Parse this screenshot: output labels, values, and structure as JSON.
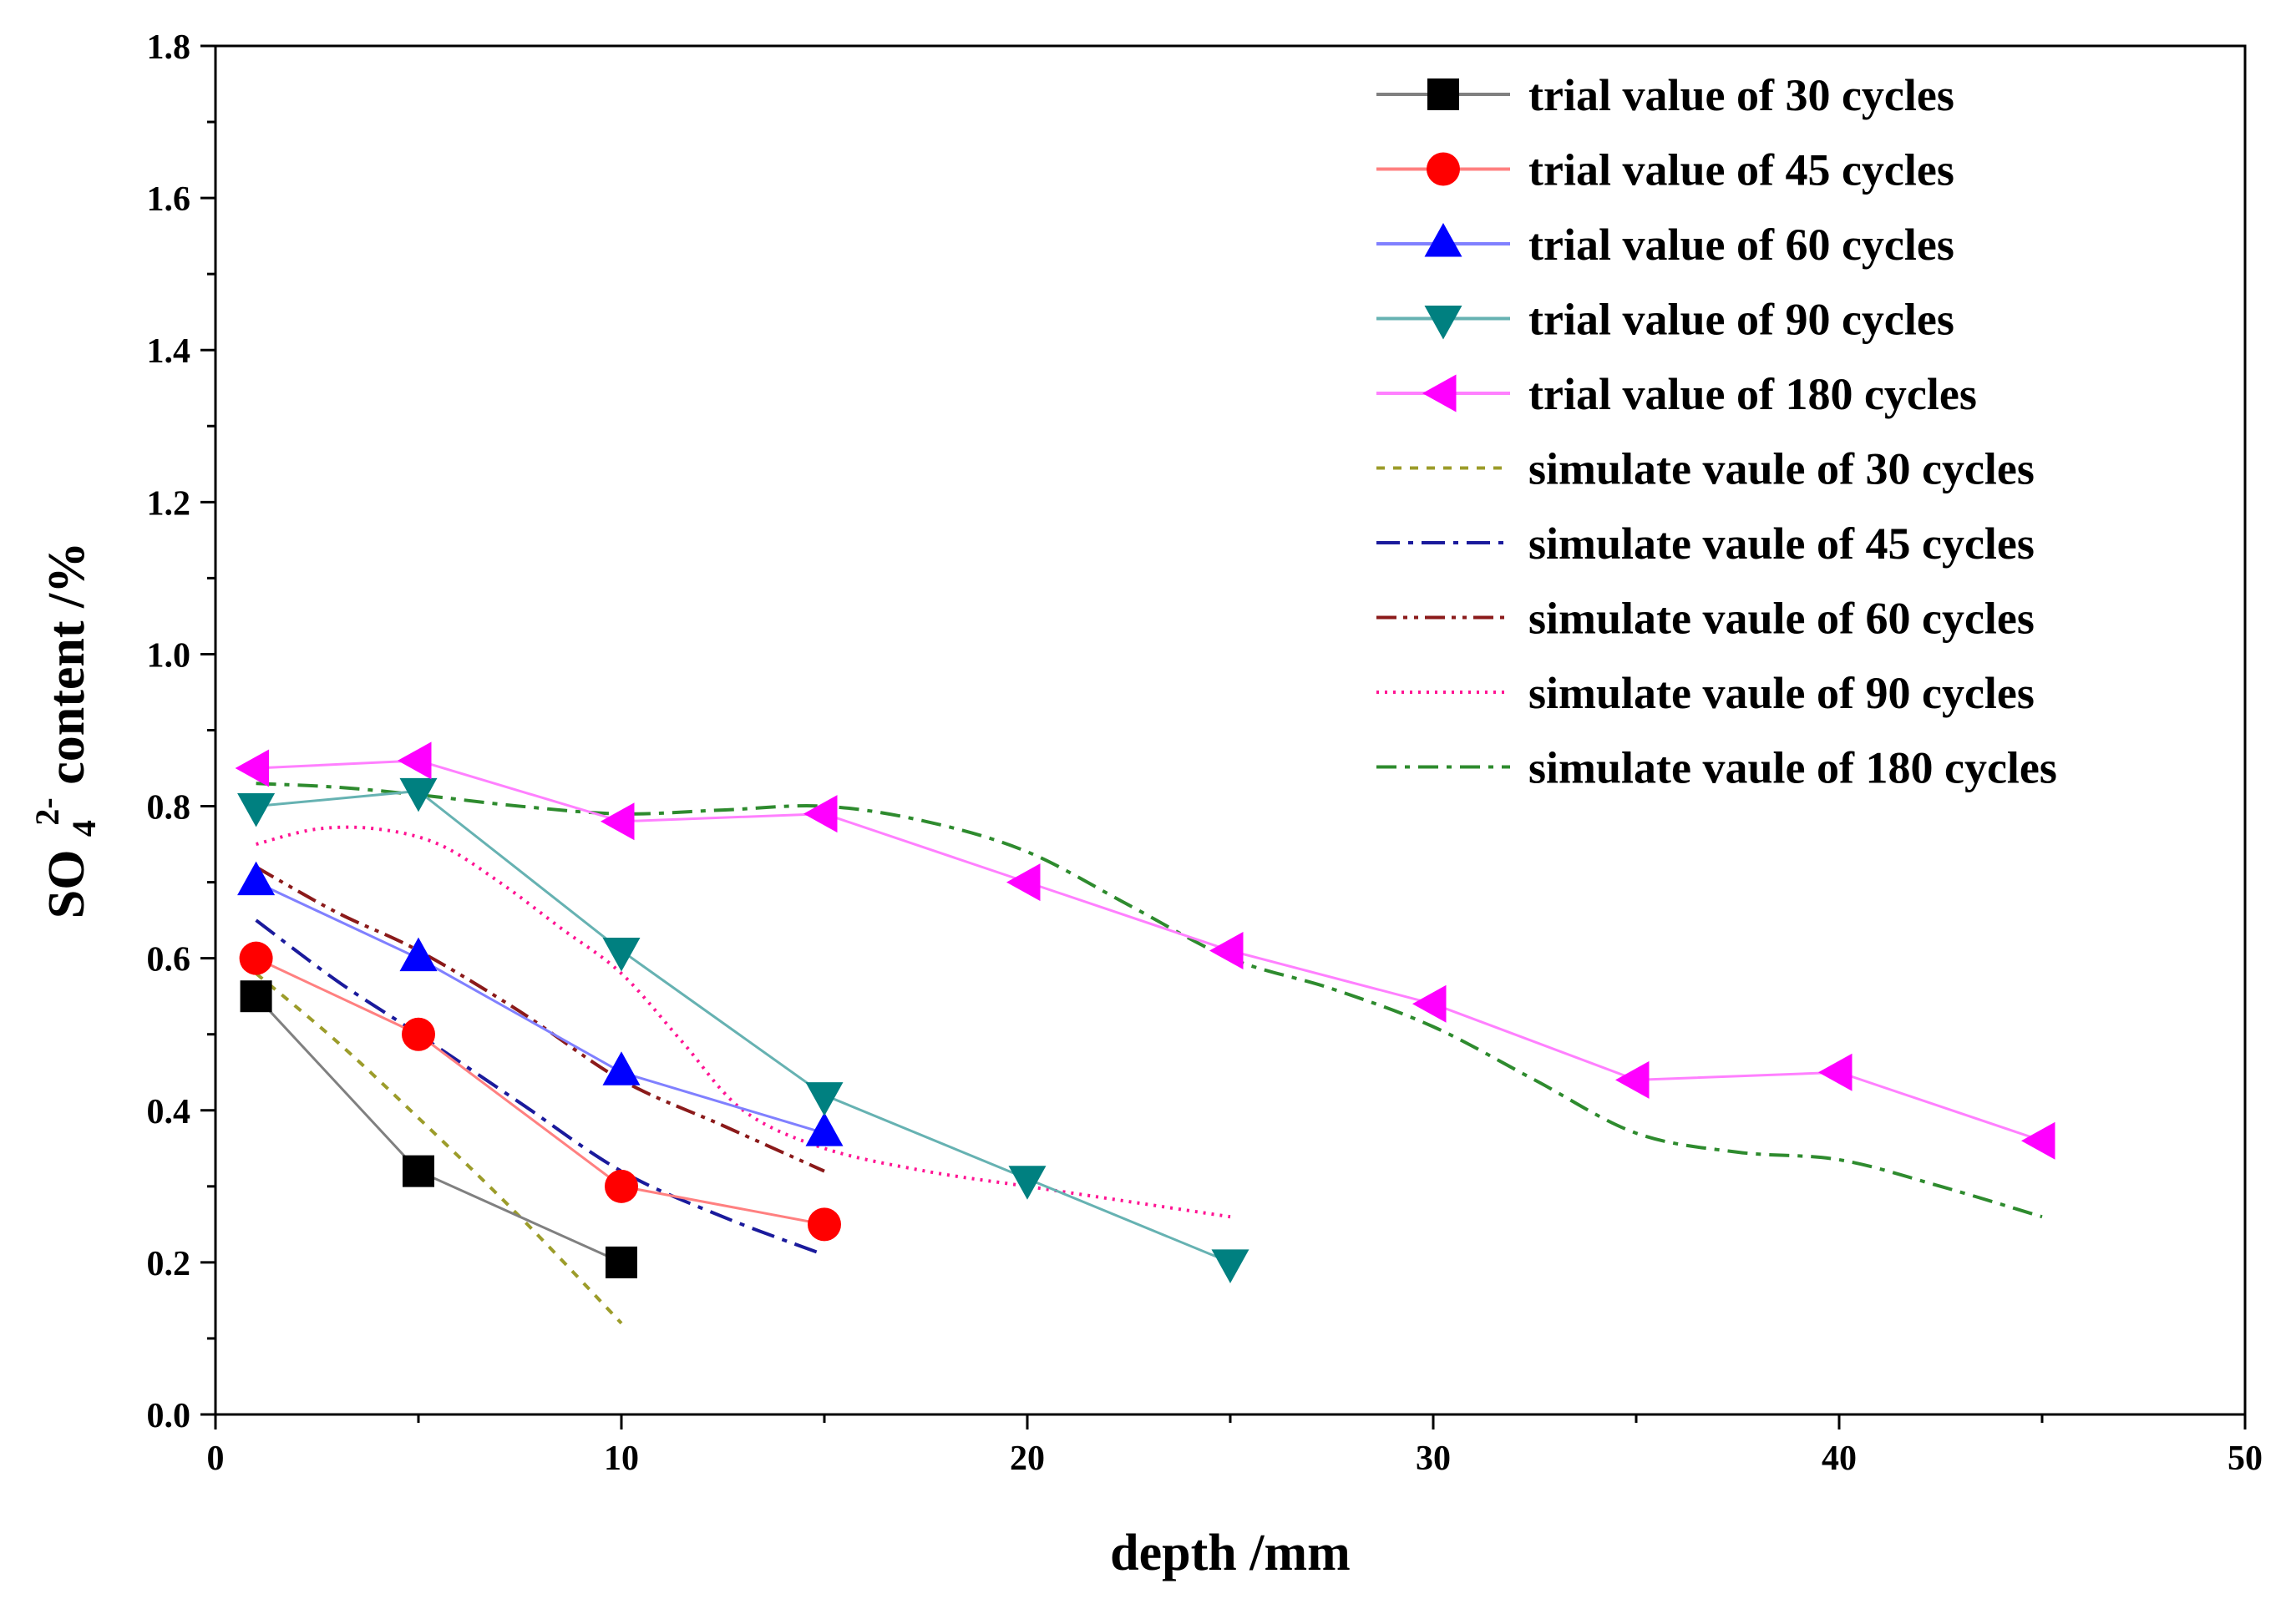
{
  "chart_data": {
    "type": "line",
    "title": "",
    "xlabel": "depth /mm",
    "ylabel": {
      "prefix": "SO",
      "subscript": "4",
      "superscript": "2-",
      "suffix": "content /%"
    },
    "xlim": [
      0,
      50
    ],
    "ylim": [
      0,
      1.8
    ],
    "xticks": [
      "0",
      "10",
      "20",
      "30",
      "40",
      "50"
    ],
    "yticks": [
      "0.0",
      "0.2",
      "0.4",
      "0.6",
      "0.8",
      "1.0",
      "1.2",
      "1.4",
      "1.6",
      "1.8"
    ],
    "grid": false,
    "legend_position": "top-right",
    "series": [
      {
        "name": "trial value of 30 cycles",
        "kind": "trial",
        "color": "#808080",
        "marker": "square",
        "marker_color": "#000000",
        "x": [
          1,
          5,
          10
        ],
        "y": [
          0.55,
          0.32,
          0.2
        ]
      },
      {
        "name": "trial value of 45 cycles",
        "kind": "trial",
        "color": "#ff8080",
        "marker": "circle",
        "marker_color": "#ff0000",
        "x": [
          1,
          5,
          10,
          15
        ],
        "y": [
          0.6,
          0.5,
          0.3,
          0.25
        ]
      },
      {
        "name": "trial value of 60 cycles",
        "kind": "trial",
        "color": "#8080ff",
        "marker": "triangle-up",
        "marker_color": "#0000ff",
        "x": [
          1,
          5,
          10,
          15
        ],
        "y": [
          0.7,
          0.6,
          0.45,
          0.37
        ]
      },
      {
        "name": "trial value of 90 cycles",
        "kind": "trial",
        "color": "#66b2b2",
        "marker": "triangle-down",
        "marker_color": "#008080",
        "x": [
          1,
          5,
          10,
          15,
          20,
          25
        ],
        "y": [
          0.8,
          0.82,
          0.61,
          0.42,
          0.31,
          0.2
        ]
      },
      {
        "name": "trial value of 180 cycles",
        "kind": "trial",
        "color": "#ff80ff",
        "marker": "triangle-left",
        "marker_color": "#ff00ff",
        "x": [
          1,
          5,
          10,
          15,
          20,
          25,
          30,
          35,
          40,
          45
        ],
        "y": [
          0.85,
          0.86,
          0.78,
          0.79,
          0.7,
          0.61,
          0.54,
          0.44,
          0.45,
          0.36
        ]
      },
      {
        "name": "simulate vaule of 30 cycles",
        "kind": "simulate",
        "color": "#9c9c2a",
        "dash": "10,10",
        "x": [
          1,
          3,
          5,
          7.5,
          10
        ],
        "y": [
          0.58,
          0.49,
          0.39,
          0.26,
          0.12
        ]
      },
      {
        "name": "simulate vaule of 45 cycles",
        "kind": "simulate",
        "color": "#1a1a9c",
        "dash": "28,10,6,10",
        "x": [
          1,
          3,
          5,
          7.5,
          10,
          12.5,
          15
        ],
        "y": [
          0.65,
          0.57,
          0.5,
          0.41,
          0.32,
          0.26,
          0.21
        ]
      },
      {
        "name": "simulate vaule of 60 cycles",
        "kind": "simulate",
        "color": "#8b1a1a",
        "dash": "24,8,5,8,5,8",
        "x": [
          1,
          3,
          5,
          7.5,
          10,
          12.5,
          15
        ],
        "y": [
          0.72,
          0.66,
          0.61,
          0.53,
          0.44,
          0.38,
          0.32
        ]
      },
      {
        "name": "simulate vaule of 90 cycles",
        "kind": "simulate",
        "color": "#ff1493",
        "dash": "3,7",
        "x": [
          1,
          2.5,
          4,
          5.5,
          7,
          8.5,
          10,
          11.5,
          13,
          15,
          17.5,
          20,
          22.5,
          25
        ],
        "y": [
          0.75,
          0.77,
          0.77,
          0.75,
          0.7,
          0.64,
          0.58,
          0.49,
          0.4,
          0.35,
          0.32,
          0.3,
          0.28,
          0.26
        ]
      },
      {
        "name": "simulate vaule of 180 cycles",
        "kind": "simulate",
        "color": "#2e8b2e",
        "dash": "24,10,6,10",
        "x": [
          1,
          3,
          5,
          7.5,
          10,
          12.5,
          15,
          17.5,
          20,
          22.5,
          25,
          27.5,
          30,
          32.5,
          35,
          37.5,
          40,
          42.5,
          45
        ],
        "y": [
          0.83,
          0.825,
          0.815,
          0.8,
          0.79,
          0.795,
          0.8,
          0.78,
          0.74,
          0.67,
          0.6,
          0.56,
          0.51,
          0.44,
          0.37,
          0.345,
          0.335,
          0.3,
          0.26
        ]
      }
    ]
  }
}
